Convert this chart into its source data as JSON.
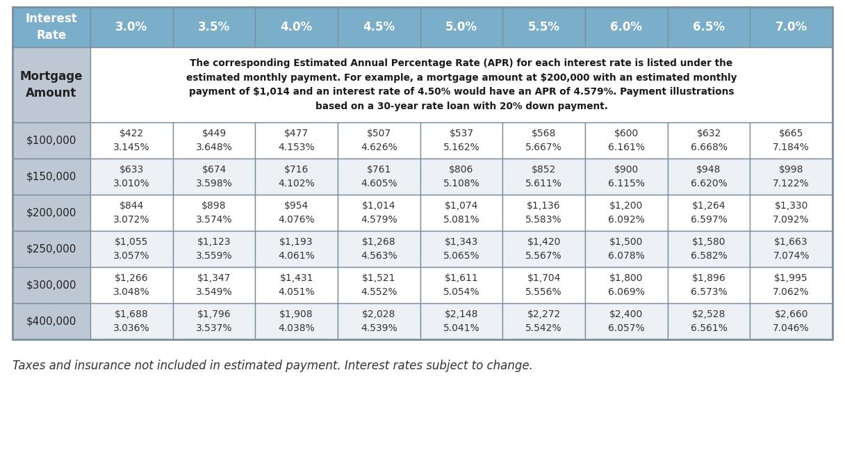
{
  "footer": "Taxes and insurance not included in estimated payment. Interest rates subject to change.",
  "header_bg": "#7baec9",
  "header_text": "#ffffff",
  "subheader_bg": "#bec8d5",
  "row_bg_odd": "#ffffff",
  "row_bg_even": "#edf1f5",
  "border_color": "#7a8fa0",
  "interest_rates": [
    "3.0%",
    "3.5%",
    "4.0%",
    "4.5%",
    "5.0%",
    "5.5%",
    "6.0%",
    "6.5%",
    "7.0%"
  ],
  "mortgage_amounts": [
    "$100,000",
    "$150,000",
    "$200,000",
    "$250,000",
    "$300,000",
    "$400,000"
  ],
  "note_text": "The corresponding Estimated Annual Percentage Rate (APR) for each interest rate is listed under the\nestimated monthly payment. For example, a mortgage amount at $200,000 with an estimated monthly\npayment of $1,014 and an interest rate of 4.50% would have an APR of 4.579%. Payment illustrations\nbased on a 30-year rate loan with 20% down payment.",
  "cell_data": [
    [
      [
        "$422",
        "3.145%"
      ],
      [
        "$449",
        "3.648%"
      ],
      [
        "$477",
        "4.153%"
      ],
      [
        "$507",
        "4.626%"
      ],
      [
        "$537",
        "5.162%"
      ],
      [
        "$568",
        "5.667%"
      ],
      [
        "$600",
        "6.161%"
      ],
      [
        "$632",
        "6.668%"
      ],
      [
        "$665",
        "7.184%"
      ]
    ],
    [
      [
        "$633",
        "3.010%"
      ],
      [
        "$674",
        "3.598%"
      ],
      [
        "$716",
        "4.102%"
      ],
      [
        "$761",
        "4.605%"
      ],
      [
        "$806",
        "5.108%"
      ],
      [
        "$852",
        "5.611%"
      ],
      [
        "$900",
        "6.115%"
      ],
      [
        "$948",
        "6.620%"
      ],
      [
        "$998",
        "7.122%"
      ]
    ],
    [
      [
        "$844",
        "3.072%"
      ],
      [
        "$898",
        "3.574%"
      ],
      [
        "$954",
        "4.076%"
      ],
      [
        "$1,014",
        "4.579%"
      ],
      [
        "$1,074",
        "5.081%"
      ],
      [
        "$1,136",
        "5.583%"
      ],
      [
        "$1,200",
        "6.092%"
      ],
      [
        "$1,264",
        "6.597%"
      ],
      [
        "$1,330",
        "7.092%"
      ]
    ],
    [
      [
        "$1,055",
        "3.057%"
      ],
      [
        "$1,123",
        "3.559%"
      ],
      [
        "$1,193",
        "4.061%"
      ],
      [
        "$1,268",
        "4.563%"
      ],
      [
        "$1,343",
        "5.065%"
      ],
      [
        "$1,420",
        "5.567%"
      ],
      [
        "$1,500",
        "6.078%"
      ],
      [
        "$1,580",
        "6.582%"
      ],
      [
        "$1,663",
        "7.074%"
      ]
    ],
    [
      [
        "$1,266",
        "3.048%"
      ],
      [
        "$1,347",
        "3.549%"
      ],
      [
        "$1,431",
        "4.051%"
      ],
      [
        "$1,521",
        "4.552%"
      ],
      [
        "$1,611",
        "5.054%"
      ],
      [
        "$1,704",
        "5.556%"
      ],
      [
        "$1,800",
        "6.069%"
      ],
      [
        "$1,896",
        "6.573%"
      ],
      [
        "$1,995",
        "7.062%"
      ]
    ],
    [
      [
        "$1,688",
        "3.036%"
      ],
      [
        "$1,796",
        "3.537%"
      ],
      [
        "$1,908",
        "4.038%"
      ],
      [
        "$2,028",
        "4.539%"
      ],
      [
        "$2,148",
        "5.041%"
      ],
      [
        "$2,272",
        "5.542%"
      ],
      [
        "$2,400",
        "6.057%"
      ],
      [
        "$2,528",
        "6.561%"
      ],
      [
        "$2,660",
        "7.046%"
      ]
    ]
  ]
}
